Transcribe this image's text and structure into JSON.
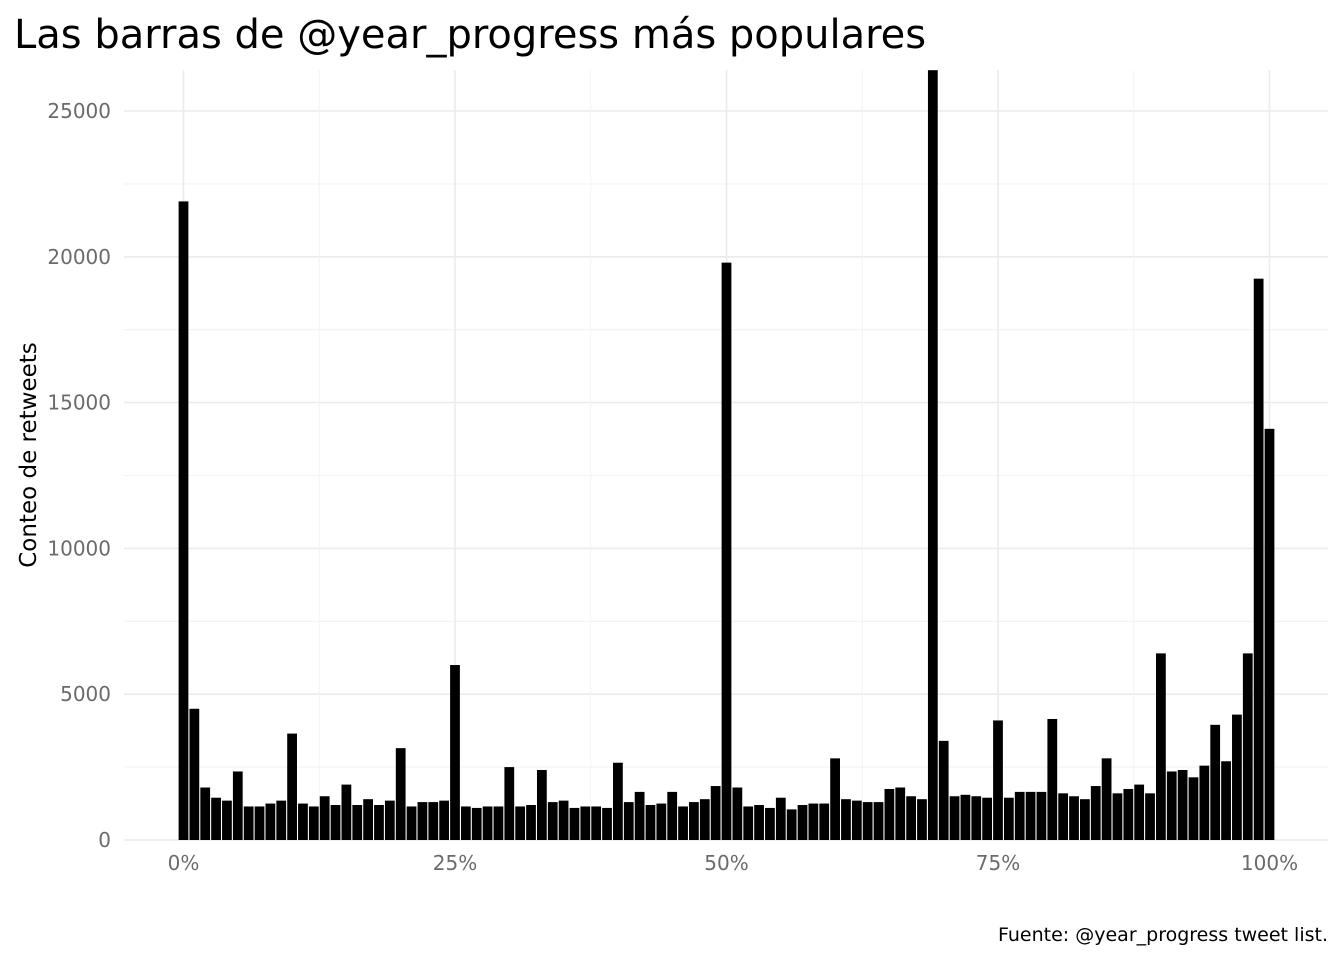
{
  "chart_data": {
    "type": "bar",
    "title": "Las barras de @year_progress más populares",
    "xlabel": "",
    "ylabel": "Conteo de retweets",
    "caption": "Fuente: @year_progress tweet list.",
    "x_unit": "percent",
    "x": [
      0,
      1,
      2,
      3,
      4,
      5,
      6,
      7,
      8,
      9,
      10,
      11,
      12,
      13,
      14,
      15,
      16,
      17,
      18,
      19,
      20,
      21,
      22,
      23,
      24,
      25,
      26,
      27,
      28,
      29,
      30,
      31,
      32,
      33,
      34,
      35,
      36,
      37,
      38,
      39,
      40,
      41,
      42,
      43,
      44,
      45,
      46,
      47,
      48,
      49,
      50,
      51,
      52,
      53,
      54,
      55,
      56,
      57,
      58,
      59,
      60,
      61,
      62,
      63,
      64,
      65,
      66,
      67,
      68,
      69,
      70,
      71,
      72,
      73,
      74,
      75,
      76,
      77,
      78,
      79,
      80,
      81,
      82,
      83,
      84,
      85,
      86,
      87,
      88,
      89,
      90,
      91,
      92,
      93,
      94,
      95,
      96,
      97,
      98,
      99,
      100
    ],
    "values": [
      21900,
      4500,
      1800,
      1450,
      1350,
      2350,
      1150,
      1150,
      1250,
      1350,
      3650,
      1250,
      1150,
      1500,
      1200,
      1900,
      1200,
      1400,
      1200,
      1350,
      3150,
      1150,
      1300,
      1300,
      1350,
      6000,
      1150,
      1100,
      1150,
      1150,
      2500,
      1150,
      1200,
      2400,
      1300,
      1350,
      1100,
      1150,
      1150,
      1100,
      2650,
      1300,
      1650,
      1200,
      1250,
      1650,
      1150,
      1300,
      1400,
      1850,
      19800,
      1800,
      1150,
      1200,
      1100,
      1450,
      1050,
      1200,
      1250,
      1250,
      2800,
      1400,
      1350,
      1300,
      1300,
      1750,
      1800,
      1500,
      1400,
      26400,
      3400,
      1500,
      1550,
      1500,
      1450,
      4100,
      1450,
      1650,
      1650,
      1650,
      4150,
      1600,
      1500,
      1400,
      1850,
      2800,
      1600,
      1750,
      1900,
      1600,
      6400,
      2350,
      2400,
      2150,
      2550,
      3950,
      2700,
      4300,
      6400,
      19250,
      14100
    ],
    "xticks": [
      0,
      25,
      50,
      75,
      100
    ],
    "xtick_labels": [
      "0%",
      "25%",
      "50%",
      "75%",
      "100%"
    ],
    "yticks": [
      0,
      5000,
      10000,
      15000,
      20000,
      25000
    ],
    "ytick_labels": [
      "0",
      "5000",
      "10000",
      "15000",
      "20000",
      "25000"
    ],
    "xlim": [
      -5,
      105
    ],
    "ylim": [
      0,
      26400
    ],
    "grid": true,
    "legend": "none",
    "bar_color": "#000000",
    "gridline_color": "#ebebeb"
  }
}
